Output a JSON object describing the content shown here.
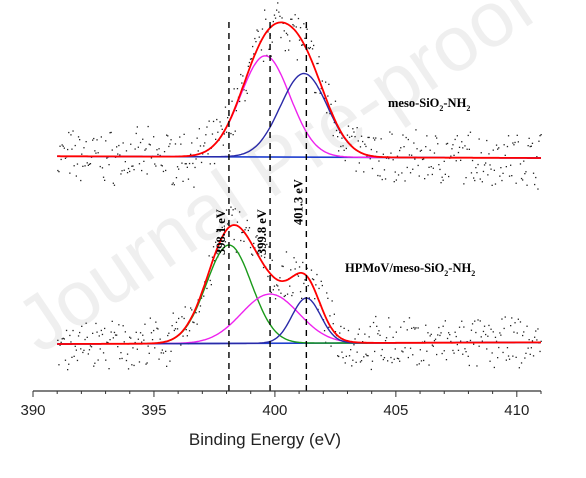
{
  "chart_data": {
    "type": "line",
    "xlabel": "Binding Energy (eV)",
    "ylabel": "",
    "xlim": [
      390,
      411
    ],
    "x_ticks": [
      390,
      395,
      400,
      405,
      410
    ],
    "grid": false,
    "reference_lines": [
      {
        "x": 398.1,
        "label": "398.1 eV"
      },
      {
        "x": 399.8,
        "label": "399.8 eV"
      },
      {
        "x": 401.3,
        "label": "401.3 eV"
      }
    ],
    "panels": [
      {
        "label_parts": {
          "a": "meso-SiO",
          "s1": "2",
          "b": "-NH",
          "s2": "2"
        },
        "baseline": [
          [
            391,
            0.02
          ],
          [
            411,
            0.0
          ]
        ],
        "components": [
          {
            "color": "#ee22ee",
            "center": 399.6,
            "height": 1.15,
            "fwhm": 2.4
          },
          {
            "color": "#2a2aa8",
            "center": 401.2,
            "height": 0.95,
            "fwhm": 2.3
          }
        ],
        "envelope_color": "#ff0000",
        "baseline_color": "#1f3fcf",
        "noise_color": "#222222"
      },
      {
        "label_parts": {
          "a": "HPMoV/meso-SiO",
          "s1": "2",
          "b": "-NH",
          "s2": "2"
        },
        "baseline": [
          [
            391,
            0.0
          ],
          [
            411,
            0.02
          ]
        ],
        "components": [
          {
            "color": "#1a9a1a",
            "center": 398.1,
            "height": 1.2,
            "fwhm": 2.2
          },
          {
            "color": "#ee22ee",
            "center": 399.8,
            "height": 0.6,
            "fwhm": 2.8
          },
          {
            "color": "#2a2aa8",
            "center": 401.3,
            "height": 0.55,
            "fwhm": 1.4
          }
        ],
        "envelope_color": "#ff0000",
        "baseline_color": "#1f3fcf",
        "noise_color": "#222222"
      }
    ]
  },
  "watermark_text": "Journal Pre-proof"
}
